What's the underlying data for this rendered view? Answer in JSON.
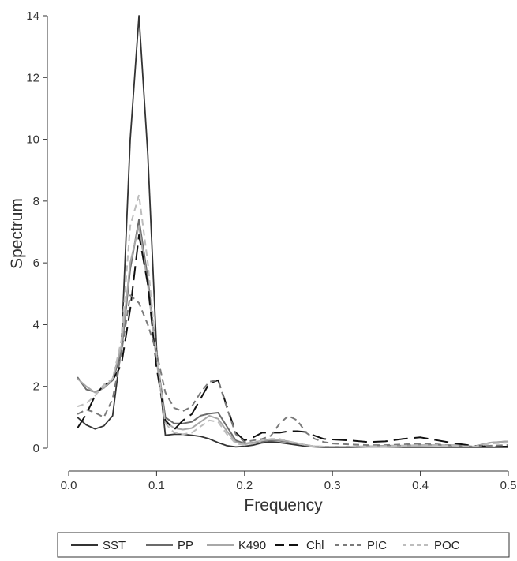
{
  "chart_data": {
    "type": "line",
    "title": "",
    "xlabel": "Frequency",
    "ylabel": "Spectrum",
    "xlim": [
      0,
      0.5
    ],
    "ylim": [
      0,
      14
    ],
    "xticks": [
      "0.0",
      "0.1",
      "0.2",
      "0.3",
      "0.4",
      "0.5"
    ],
    "yticks": [
      "0",
      "2",
      "4",
      "6",
      "8",
      "10",
      "12",
      "14"
    ],
    "grid": false,
    "legend_position": "bottom",
    "series": [
      {
        "name": "SST",
        "color": "#333333",
        "dash": "solid",
        "points": [
          [
            0.01,
            1.0
          ],
          [
            0.02,
            0.75
          ],
          [
            0.03,
            0.62
          ],
          [
            0.04,
            0.72
          ],
          [
            0.05,
            1.05
          ],
          [
            0.06,
            3.3
          ],
          [
            0.07,
            10.0
          ],
          [
            0.08,
            14.0
          ],
          [
            0.09,
            9.5
          ],
          [
            0.1,
            3.2
          ],
          [
            0.11,
            0.42
          ],
          [
            0.12,
            0.45
          ],
          [
            0.13,
            0.45
          ],
          [
            0.14,
            0.42
          ],
          [
            0.15,
            0.38
          ],
          [
            0.16,
            0.3
          ],
          [
            0.17,
            0.18
          ],
          [
            0.18,
            0.08
          ],
          [
            0.19,
            0.04
          ],
          [
            0.2,
            0.06
          ],
          [
            0.21,
            0.1
          ],
          [
            0.22,
            0.17
          ],
          [
            0.23,
            0.2
          ],
          [
            0.24,
            0.18
          ],
          [
            0.25,
            0.14
          ],
          [
            0.26,
            0.1
          ],
          [
            0.27,
            0.06
          ],
          [
            0.28,
            0.04
          ],
          [
            0.29,
            0.03
          ],
          [
            0.3,
            0.03
          ],
          [
            0.32,
            0.03
          ],
          [
            0.34,
            0.04
          ],
          [
            0.36,
            0.04
          ],
          [
            0.38,
            0.03
          ],
          [
            0.4,
            0.03
          ],
          [
            0.42,
            0.03
          ],
          [
            0.44,
            0.03
          ],
          [
            0.46,
            0.03
          ],
          [
            0.48,
            0.03
          ],
          [
            0.5,
            0.03
          ]
        ]
      },
      {
        "name": "PP",
        "color": "#6b6b6b",
        "dash": "solid",
        "points": [
          [
            0.01,
            2.3
          ],
          [
            0.02,
            1.9
          ],
          [
            0.03,
            1.82
          ],
          [
            0.04,
            1.95
          ],
          [
            0.05,
            2.2
          ],
          [
            0.06,
            3.1
          ],
          [
            0.07,
            5.8
          ],
          [
            0.08,
            7.4
          ],
          [
            0.09,
            5.5
          ],
          [
            0.1,
            3.0
          ],
          [
            0.11,
            1.0
          ],
          [
            0.12,
            0.8
          ],
          [
            0.13,
            0.8
          ],
          [
            0.14,
            0.85
          ],
          [
            0.15,
            1.05
          ],
          [
            0.16,
            1.12
          ],
          [
            0.17,
            1.15
          ],
          [
            0.18,
            0.7
          ],
          [
            0.19,
            0.25
          ],
          [
            0.2,
            0.15
          ],
          [
            0.21,
            0.18
          ],
          [
            0.22,
            0.22
          ],
          [
            0.23,
            0.25
          ],
          [
            0.24,
            0.24
          ],
          [
            0.25,
            0.2
          ],
          [
            0.26,
            0.15
          ],
          [
            0.27,
            0.1
          ],
          [
            0.28,
            0.06
          ],
          [
            0.29,
            0.05
          ],
          [
            0.3,
            0.05
          ],
          [
            0.32,
            0.05
          ],
          [
            0.34,
            0.06
          ],
          [
            0.36,
            0.08
          ],
          [
            0.38,
            0.08
          ],
          [
            0.4,
            0.1
          ],
          [
            0.42,
            0.1
          ],
          [
            0.44,
            0.08
          ],
          [
            0.46,
            0.05
          ],
          [
            0.48,
            0.18
          ],
          [
            0.5,
            0.22
          ]
        ]
      },
      {
        "name": "K490",
        "color": "#a8a8a8",
        "dash": "solid",
        "points": [
          [
            0.01,
            2.25
          ],
          [
            0.02,
            2.0
          ],
          [
            0.03,
            1.8
          ],
          [
            0.04,
            1.95
          ],
          [
            0.05,
            2.25
          ],
          [
            0.06,
            3.3
          ],
          [
            0.07,
            6.0
          ],
          [
            0.08,
            7.2
          ],
          [
            0.09,
            5.3
          ],
          [
            0.1,
            2.8
          ],
          [
            0.11,
            0.85
          ],
          [
            0.12,
            0.65
          ],
          [
            0.13,
            0.6
          ],
          [
            0.14,
            0.65
          ],
          [
            0.15,
            0.85
          ],
          [
            0.16,
            1.05
          ],
          [
            0.17,
            0.95
          ],
          [
            0.18,
            0.55
          ],
          [
            0.19,
            0.2
          ],
          [
            0.2,
            0.12
          ],
          [
            0.21,
            0.18
          ],
          [
            0.22,
            0.25
          ],
          [
            0.23,
            0.28
          ],
          [
            0.24,
            0.26
          ],
          [
            0.25,
            0.22
          ],
          [
            0.26,
            0.16
          ],
          [
            0.27,
            0.1
          ],
          [
            0.28,
            0.06
          ],
          [
            0.29,
            0.05
          ],
          [
            0.3,
            0.05
          ],
          [
            0.32,
            0.05
          ],
          [
            0.34,
            0.05
          ],
          [
            0.36,
            0.06
          ],
          [
            0.38,
            0.07
          ],
          [
            0.4,
            0.08
          ],
          [
            0.42,
            0.1
          ],
          [
            0.44,
            0.1
          ],
          [
            0.46,
            0.05
          ],
          [
            0.48,
            0.18
          ],
          [
            0.5,
            0.22
          ]
        ]
      },
      {
        "name": "Chl",
        "color": "#111111",
        "dash": "18,8",
        "points": [
          [
            0.01,
            0.65
          ],
          [
            0.02,
            1.1
          ],
          [
            0.03,
            1.7
          ],
          [
            0.04,
            2.05
          ],
          [
            0.05,
            2.2
          ],
          [
            0.06,
            2.7
          ],
          [
            0.07,
            4.5
          ],
          [
            0.08,
            6.9
          ],
          [
            0.09,
            5.3
          ],
          [
            0.1,
            2.6
          ],
          [
            0.11,
            0.9
          ],
          [
            0.12,
            0.6
          ],
          [
            0.13,
            0.9
          ],
          [
            0.14,
            1.1
          ],
          [
            0.15,
            1.6
          ],
          [
            0.16,
            2.1
          ],
          [
            0.17,
            2.2
          ],
          [
            0.18,
            1.35
          ],
          [
            0.19,
            0.5
          ],
          [
            0.2,
            0.25
          ],
          [
            0.21,
            0.35
          ],
          [
            0.22,
            0.5
          ],
          [
            0.23,
            0.5
          ],
          [
            0.24,
            0.5
          ],
          [
            0.25,
            0.55
          ],
          [
            0.26,
            0.55
          ],
          [
            0.27,
            0.52
          ],
          [
            0.28,
            0.4
          ],
          [
            0.29,
            0.3
          ],
          [
            0.3,
            0.28
          ],
          [
            0.32,
            0.25
          ],
          [
            0.34,
            0.2
          ],
          [
            0.36,
            0.22
          ],
          [
            0.38,
            0.3
          ],
          [
            0.4,
            0.35
          ],
          [
            0.42,
            0.25
          ],
          [
            0.44,
            0.15
          ],
          [
            0.46,
            0.08
          ],
          [
            0.48,
            0.05
          ],
          [
            0.5,
            0.05
          ]
        ]
      },
      {
        "name": "PIC",
        "color": "#7a7a7a",
        "dash": "8,5",
        "points": [
          [
            0.01,
            1.1
          ],
          [
            0.02,
            1.25
          ],
          [
            0.03,
            1.15
          ],
          [
            0.04,
            1.0
          ],
          [
            0.05,
            1.6
          ],
          [
            0.06,
            3.1
          ],
          [
            0.07,
            4.95
          ],
          [
            0.08,
            4.7
          ],
          [
            0.09,
            4.0
          ],
          [
            0.1,
            3.1
          ],
          [
            0.11,
            1.8
          ],
          [
            0.12,
            1.3
          ],
          [
            0.13,
            1.2
          ],
          [
            0.14,
            1.35
          ],
          [
            0.15,
            1.8
          ],
          [
            0.16,
            2.15
          ],
          [
            0.17,
            2.2
          ],
          [
            0.18,
            1.3
          ],
          [
            0.19,
            0.45
          ],
          [
            0.2,
            0.2
          ],
          [
            0.21,
            0.25
          ],
          [
            0.22,
            0.3
          ],
          [
            0.23,
            0.4
          ],
          [
            0.24,
            0.8
          ],
          [
            0.25,
            1.05
          ],
          [
            0.26,
            0.9
          ],
          [
            0.27,
            0.5
          ],
          [
            0.28,
            0.3
          ],
          [
            0.29,
            0.2
          ],
          [
            0.3,
            0.15
          ],
          [
            0.32,
            0.12
          ],
          [
            0.34,
            0.1
          ],
          [
            0.36,
            0.1
          ],
          [
            0.38,
            0.12
          ],
          [
            0.4,
            0.15
          ],
          [
            0.42,
            0.12
          ],
          [
            0.44,
            0.08
          ],
          [
            0.46,
            0.05
          ],
          [
            0.48,
            0.08
          ],
          [
            0.5,
            0.1
          ]
        ]
      },
      {
        "name": "POC",
        "color": "#bdbdbd",
        "dash": "8,5",
        "points": [
          [
            0.01,
            1.35
          ],
          [
            0.02,
            1.45
          ],
          [
            0.03,
            1.7
          ],
          [
            0.04,
            2.05
          ],
          [
            0.05,
            2.25
          ],
          [
            0.06,
            3.5
          ],
          [
            0.07,
            7.2
          ],
          [
            0.08,
            8.2
          ],
          [
            0.09,
            6.0
          ],
          [
            0.1,
            3.0
          ],
          [
            0.11,
            0.8
          ],
          [
            0.12,
            0.5
          ],
          [
            0.13,
            0.45
          ],
          [
            0.14,
            0.5
          ],
          [
            0.15,
            0.7
          ],
          [
            0.16,
            0.9
          ],
          [
            0.17,
            0.85
          ],
          [
            0.18,
            0.45
          ],
          [
            0.19,
            0.15
          ],
          [
            0.2,
            0.1
          ],
          [
            0.21,
            0.15
          ],
          [
            0.22,
            0.25
          ],
          [
            0.23,
            0.3
          ],
          [
            0.24,
            0.3
          ],
          [
            0.25,
            0.22
          ],
          [
            0.26,
            0.15
          ],
          [
            0.27,
            0.1
          ],
          [
            0.28,
            0.06
          ],
          [
            0.29,
            0.05
          ],
          [
            0.3,
            0.05
          ],
          [
            0.32,
            0.05
          ],
          [
            0.34,
            0.06
          ],
          [
            0.36,
            0.07
          ],
          [
            0.38,
            0.08
          ],
          [
            0.4,
            0.1
          ],
          [
            0.42,
            0.1
          ],
          [
            0.44,
            0.08
          ],
          [
            0.46,
            0.05
          ],
          [
            0.48,
            0.15
          ],
          [
            0.5,
            0.18
          ]
        ]
      }
    ]
  }
}
